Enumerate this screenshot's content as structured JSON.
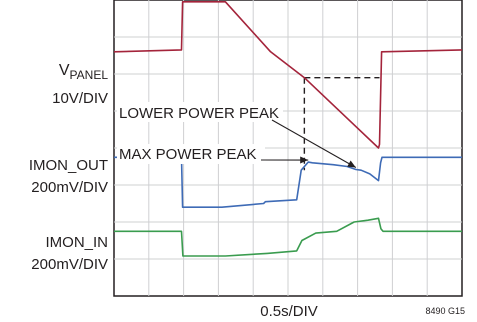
{
  "chart_data": {
    "type": "line",
    "title": "",
    "xlabel": "0.5s/DIV",
    "figure_id": "8490 G15",
    "grid": true,
    "grid_divisions": {
      "x": 10,
      "y": 8
    },
    "x_unit": "div",
    "xlim": [
      0,
      10
    ],
    "ylim": [
      0,
      8
    ],
    "series": [
      {
        "name": "V",
        "name_sub": "PANEL",
        "scale": "10V/DIV",
        "color": "#a4243b",
        "points": [
          [
            0,
            6.6
          ],
          [
            1.94,
            6.65
          ],
          [
            1.97,
            7.95
          ],
          [
            3.2,
            7.95
          ],
          [
            4.5,
            6.6
          ],
          [
            5.47,
            5.9
          ],
          [
            7.6,
            4.0
          ],
          [
            7.63,
            4.1
          ],
          [
            7.69,
            6.6
          ],
          [
            10,
            6.65
          ]
        ]
      },
      {
        "name": "IMON_OUT",
        "scale": "200mV/DIV",
        "color": "#3e6bb6",
        "points": [
          [
            0,
            3.75
          ],
          [
            1.94,
            3.75
          ],
          [
            1.97,
            2.4
          ],
          [
            3.1,
            2.4
          ],
          [
            4.3,
            2.5
          ],
          [
            4.35,
            2.55
          ],
          [
            5.25,
            2.6
          ],
          [
            5.38,
            3.4
          ],
          [
            5.58,
            3.62
          ],
          [
            5.7,
            3.6
          ],
          [
            6.3,
            3.55
          ],
          [
            6.7,
            3.5
          ],
          [
            6.95,
            3.42
          ],
          [
            7.1,
            3.4
          ],
          [
            7.35,
            3.3
          ],
          [
            7.6,
            3.12
          ],
          [
            7.66,
            3.6
          ],
          [
            7.7,
            3.75
          ],
          [
            10,
            3.75
          ]
        ]
      },
      {
        "name": "IMON_IN",
        "scale": "200mV/DIV",
        "color": "#3a9c4f",
        "points": [
          [
            0,
            1.75
          ],
          [
            1.94,
            1.75
          ],
          [
            1.98,
            1.08
          ],
          [
            3.2,
            1.08
          ],
          [
            4.4,
            1.15
          ],
          [
            5.25,
            1.22
          ],
          [
            5.4,
            1.5
          ],
          [
            5.8,
            1.7
          ],
          [
            6.4,
            1.75
          ],
          [
            6.9,
            2.0
          ],
          [
            7.3,
            2.05
          ],
          [
            7.6,
            2.1
          ],
          [
            7.67,
            1.82
          ],
          [
            7.73,
            1.75
          ],
          [
            10,
            1.75
          ]
        ]
      }
    ],
    "marker_lines": [
      {
        "from": [
          5.47,
          5.9
        ],
        "to": [
          7.63,
          5.9
        ]
      },
      {
        "from": [
          5.47,
          5.9
        ],
        "to": [
          5.47,
          3.4
        ]
      }
    ],
    "annotations": [
      {
        "text": "LOWER POWER PEAK",
        "arrow_to": [
          6.95,
          3.42
        ]
      },
      {
        "text": "MAX POWER PEAK",
        "arrow_to": [
          5.58,
          3.62
        ]
      }
    ]
  }
}
